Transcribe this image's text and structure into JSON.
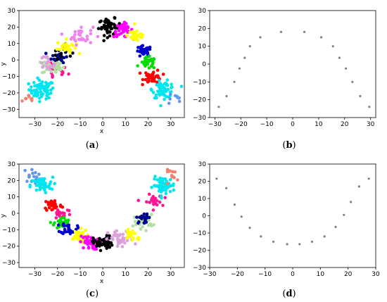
{
  "chart_data": [
    {
      "id": "a",
      "type": "scatter",
      "caption": "a",
      "xlabel": "x",
      "ylabel": "y",
      "xlim": [
        -37,
        36
      ],
      "ylim": [
        -35,
        30
      ],
      "xticks": [
        -30,
        -20,
        -10,
        0,
        10,
        20,
        30
      ],
      "yticks": [
        -30,
        -20,
        -10,
        0,
        10,
        20,
        30
      ],
      "grid": false,
      "arc_center": [
        0,
        -16
      ],
      "arc_radius": 36,
      "arc_angle_range": [
        200,
        -20
      ],
      "clusters": [
        {
          "color": "#f08070",
          "center": [
            -32,
            -24
          ],
          "count": 8,
          "spread": 2.5
        },
        {
          "color": "#00e5ee",
          "center": [
            -27,
            -18
          ],
          "count": 70,
          "spread": 4
        },
        {
          "color": "#ff1493",
          "center": [
            -21,
            -7
          ],
          "count": 18,
          "spread": 4
        },
        {
          "color": "#b0e0a0",
          "center": [
            -22,
            -4
          ],
          "count": 35,
          "spread": 3.5
        },
        {
          "color": "#dda0dd",
          "center": [
            -24,
            -1
          ],
          "count": 25,
          "spread": 4
        },
        {
          "color": "#00008b",
          "center": [
            -19,
            2
          ],
          "count": 25,
          "spread": 2.5
        },
        {
          "color": "#000000",
          "center": [
            -18,
            5
          ],
          "count": 15,
          "spread": 3
        },
        {
          "color": "#ffff00",
          "center": [
            -16,
            8
          ],
          "count": 25,
          "spread": 3
        },
        {
          "color": "#ee82ee",
          "center": [
            -10,
            15
          ],
          "count": 30,
          "spread": 4
        },
        {
          "color": "#000000",
          "center": [
            3,
            20
          ],
          "count": 50,
          "spread": 3.5
        },
        {
          "color": "#ff00ff",
          "center": [
            9,
            18
          ],
          "count": 40,
          "spread": 3
        },
        {
          "color": "#ffff00",
          "center": [
            15,
            15
          ],
          "count": 35,
          "spread": 3
        },
        {
          "color": "#0000cd",
          "center": [
            18,
            5
          ],
          "count": 35,
          "spread": 2.5
        },
        {
          "color": "#00dd00",
          "center": [
            20,
            -2
          ],
          "count": 30,
          "spread": 2.5
        },
        {
          "color": "#ff0000",
          "center": [
            22,
            -10
          ],
          "count": 40,
          "spread": 2.8
        },
        {
          "color": "#00e5ee",
          "center": [
            27,
            -18
          ],
          "count": 60,
          "spread": 3.5
        },
        {
          "color": "#6495ed",
          "center": [
            31,
            -24
          ],
          "count": 8,
          "spread": 3
        }
      ]
    },
    {
      "id": "b",
      "type": "scatter",
      "caption": "b",
      "xlim": [
        -32,
        32
      ],
      "ylim": [
        -30,
        30
      ],
      "xticks": [
        -30,
        -20,
        -10,
        0,
        10,
        20,
        30
      ],
      "yticks": [
        -30,
        -20,
        -10,
        0,
        10,
        20,
        30
      ],
      "grid": false,
      "color": "#808080",
      "x": [
        -28.5,
        -25.5,
        -22.5,
        -20.5,
        -18.5,
        -16.5,
        -12.5,
        -4.5,
        4.5,
        11,
        15.5,
        18,
        20.5,
        23,
        26,
        29.5
      ],
      "y": [
        -24,
        -18,
        -10,
        -2.5,
        3.5,
        10,
        15,
        18,
        18,
        15,
        10,
        3.5,
        -2.5,
        -10,
        -18,
        -24
      ]
    },
    {
      "id": "c",
      "type": "scatter",
      "caption": "c",
      "xlabel": "x",
      "ylabel": "y",
      "xlim": [
        -37,
        36
      ],
      "ylim": [
        -33,
        30
      ],
      "xticks": [
        -30,
        -20,
        -10,
        0,
        10,
        20,
        30
      ],
      "yticks": [
        -30,
        -20,
        -10,
        0,
        10,
        20,
        30
      ],
      "grid": false,
      "arc_center": [
        0,
        14
      ],
      "arc_radius": 35,
      "arc_angle_range": [
        160,
        20
      ],
      "clusters": [
        {
          "color": "#6495ed",
          "center": [
            -31,
            23
          ],
          "count": 15,
          "spread": 3
        },
        {
          "color": "#00e5ee",
          "center": [
            -27,
            17
          ],
          "count": 50,
          "spread": 3.5
        },
        {
          "color": "#ff0000",
          "center": [
            -22,
            5
          ],
          "count": 35,
          "spread": 2.8
        },
        {
          "color": "#ff1493",
          "center": [
            -18,
            0
          ],
          "count": 20,
          "spread": 3
        },
        {
          "color": "#00dd00",
          "center": [
            -18,
            -6
          ],
          "count": 30,
          "spread": 2.5
        },
        {
          "color": "#0000cd",
          "center": [
            -15,
            -9
          ],
          "count": 30,
          "spread": 2.5
        },
        {
          "color": "#ffff00",
          "center": [
            -11,
            -14
          ],
          "count": 35,
          "spread": 3
        },
        {
          "color": "#ff00ff",
          "center": [
            -6,
            -18
          ],
          "count": 40,
          "spread": 3
        },
        {
          "color": "#000000",
          "center": [
            0,
            -18
          ],
          "count": 50,
          "spread": 3
        },
        {
          "color": "#dda0dd",
          "center": [
            8,
            -16
          ],
          "count": 40,
          "spread": 4
        },
        {
          "color": "#ffff00",
          "center": [
            13,
            -13
          ],
          "count": 20,
          "spread": 3
        },
        {
          "color": "#b0e0a0",
          "center": [
            18,
            -5
          ],
          "count": 35,
          "spread": 3
        },
        {
          "color": "#00008b",
          "center": [
            18,
            -3
          ],
          "count": 20,
          "spread": 2.2
        },
        {
          "color": "#ff1493",
          "center": [
            22,
            7
          ],
          "count": 25,
          "spread": 3
        },
        {
          "color": "#00e5ee",
          "center": [
            27,
            17
          ],
          "count": 60,
          "spread": 3.5
        },
        {
          "color": "#f08070",
          "center": [
            31,
            23
          ],
          "count": 12,
          "spread": 2.5
        }
      ]
    },
    {
      "id": "d",
      "type": "scatter",
      "caption": "d",
      "xlim": [
        -30,
        30
      ],
      "ylim": [
        -30,
        30
      ],
      "xticks": [
        -30,
        -20,
        -10,
        0,
        10,
        20,
        30
      ],
      "yticks": [
        -30,
        -20,
        -10,
        0,
        10,
        20,
        30
      ],
      "grid": false,
      "color": "#808080",
      "x": [
        -27.5,
        -24,
        -21,
        -18.5,
        -15.5,
        -11.5,
        -7,
        -2,
        2.5,
        7,
        11.5,
        15.5,
        18.5,
        21,
        24,
        27.5
      ],
      "y": [
        21.5,
        16,
        6.5,
        -0.5,
        -7,
        -12,
        -15,
        -16.5,
        -16.5,
        -15,
        -12,
        -6.5,
        0.5,
        8,
        17,
        21.5
      ]
    }
  ]
}
